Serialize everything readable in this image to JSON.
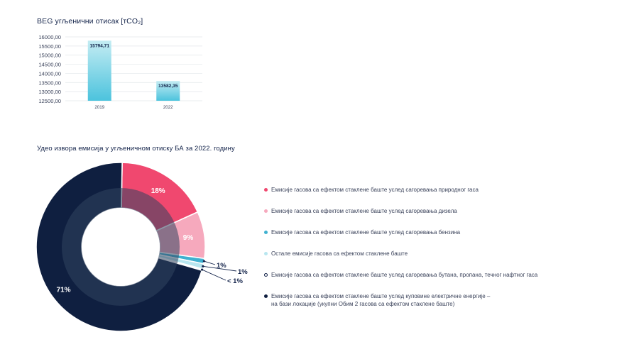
{
  "bar_chart_title": "ВЕG угљенични отисак [тCO₂]",
  "pie_chart_title": "Удео извора емисија у угљеничном отиску БА за 2022. годину",
  "chart_data": [
    {
      "type": "bar",
      "title": "ВЕG угљенични отисак [тCO₂]",
      "categories": [
        "2019",
        "2022"
      ],
      "values": [
        15794.71,
        13582.35
      ],
      "value_labels": [
        "15794,71",
        "13582,35"
      ],
      "ylim": [
        12500,
        16000
      ],
      "y_ticks": [
        {
          "value": 16000,
          "label": "16000,00"
        },
        {
          "value": 15500,
          "label": "15500,00"
        },
        {
          "value": 15000,
          "label": "15000,00"
        },
        {
          "value": 14500,
          "label": "14500,00"
        },
        {
          "value": 14000,
          "label": "14000,00"
        },
        {
          "value": 13500,
          "label": "13500,00"
        },
        {
          "value": 13000,
          "label": "13000,00"
        },
        {
          "value": 12500,
          "label": "12500,00"
        }
      ],
      "grid": true,
      "colors": {
        "bar_top": "#c4ecf3",
        "bar_bottom": "#4cc3dd",
        "grid": "#e2e6ea",
        "axis_text": "#3a425a"
      }
    },
    {
      "type": "pie",
      "title": "Удео извора емисија у угљеничном отиску БА за 2022. годину",
      "donut": true,
      "slices": [
        {
          "name": "Емисије гасова са ефектом стаклене баште услед сагоревања природног гаса",
          "value": 18,
          "label": "18%",
          "color": "#f0486f",
          "label_position": "inside"
        },
        {
          "name": "Емисије гасова са ефектом стаклене баште услед сагоревања дизела",
          "value": 9,
          "label": "9%",
          "color": "#f6a9bd",
          "label_position": "inside"
        },
        {
          "name": "Емисије гасова са ефектом стаклене баште услед сагоревања бензина",
          "value": 1,
          "label": "1%",
          "color": "#3fb1d0",
          "label_position": "outside"
        },
        {
          "name": "Остале емисије гасова са ефектом стаклене баште",
          "value": 1,
          "label": "1%",
          "color": "#b8e6ef",
          "label_position": "outside"
        },
        {
          "name": "Емисије гасова са ефектом стаклене баште услед сагоревања бутана, пропана, течног нафтног гаса",
          "value": 0.3,
          "label": "< 1%",
          "color": "#ffffff",
          "label_position": "outside"
        },
        {
          "name": "Емисије гасова са ефектом стаклене баште услед куповине електричне енергије –\nна бази локације (укупни Обим 2 гасова са ефектом стаклене баште)",
          "value": 71,
          "label": "71%",
          "color": "#0f1f40",
          "label_position": "inside"
        }
      ],
      "inner_ring_color": "#32435f",
      "legend_position": "right"
    }
  ],
  "legend": [
    {
      "text": "Емисије гасова са ефектом стаклене баште услед сагоревања природног гаса",
      "color": "#f0486f"
    },
    {
      "text": "Емисије гасова са ефектом стаклене баште услед сагоревања дизела",
      "color": "#f6a9bd"
    },
    {
      "text": "Емисије гасова са ефектом стаклене баште услед сагоревања бензина",
      "color": "#3fb1d0"
    },
    {
      "text": "Остале емисије гасова са ефектом стаклене баште",
      "color": "#b8e6ef"
    },
    {
      "text": "Емисије гасова са ефектом стаклене баште услед сагоревања бутана, пропана, течног нафтног гаса",
      "color": "#ffffff"
    },
    {
      "text": "Емисије гасова са ефектом стаклене баште услед куповине електричне енергије –\nна бази локације (укупни Обим 2 гасова са ефектом стаклене баште)",
      "color": "#0f1f40"
    }
  ]
}
